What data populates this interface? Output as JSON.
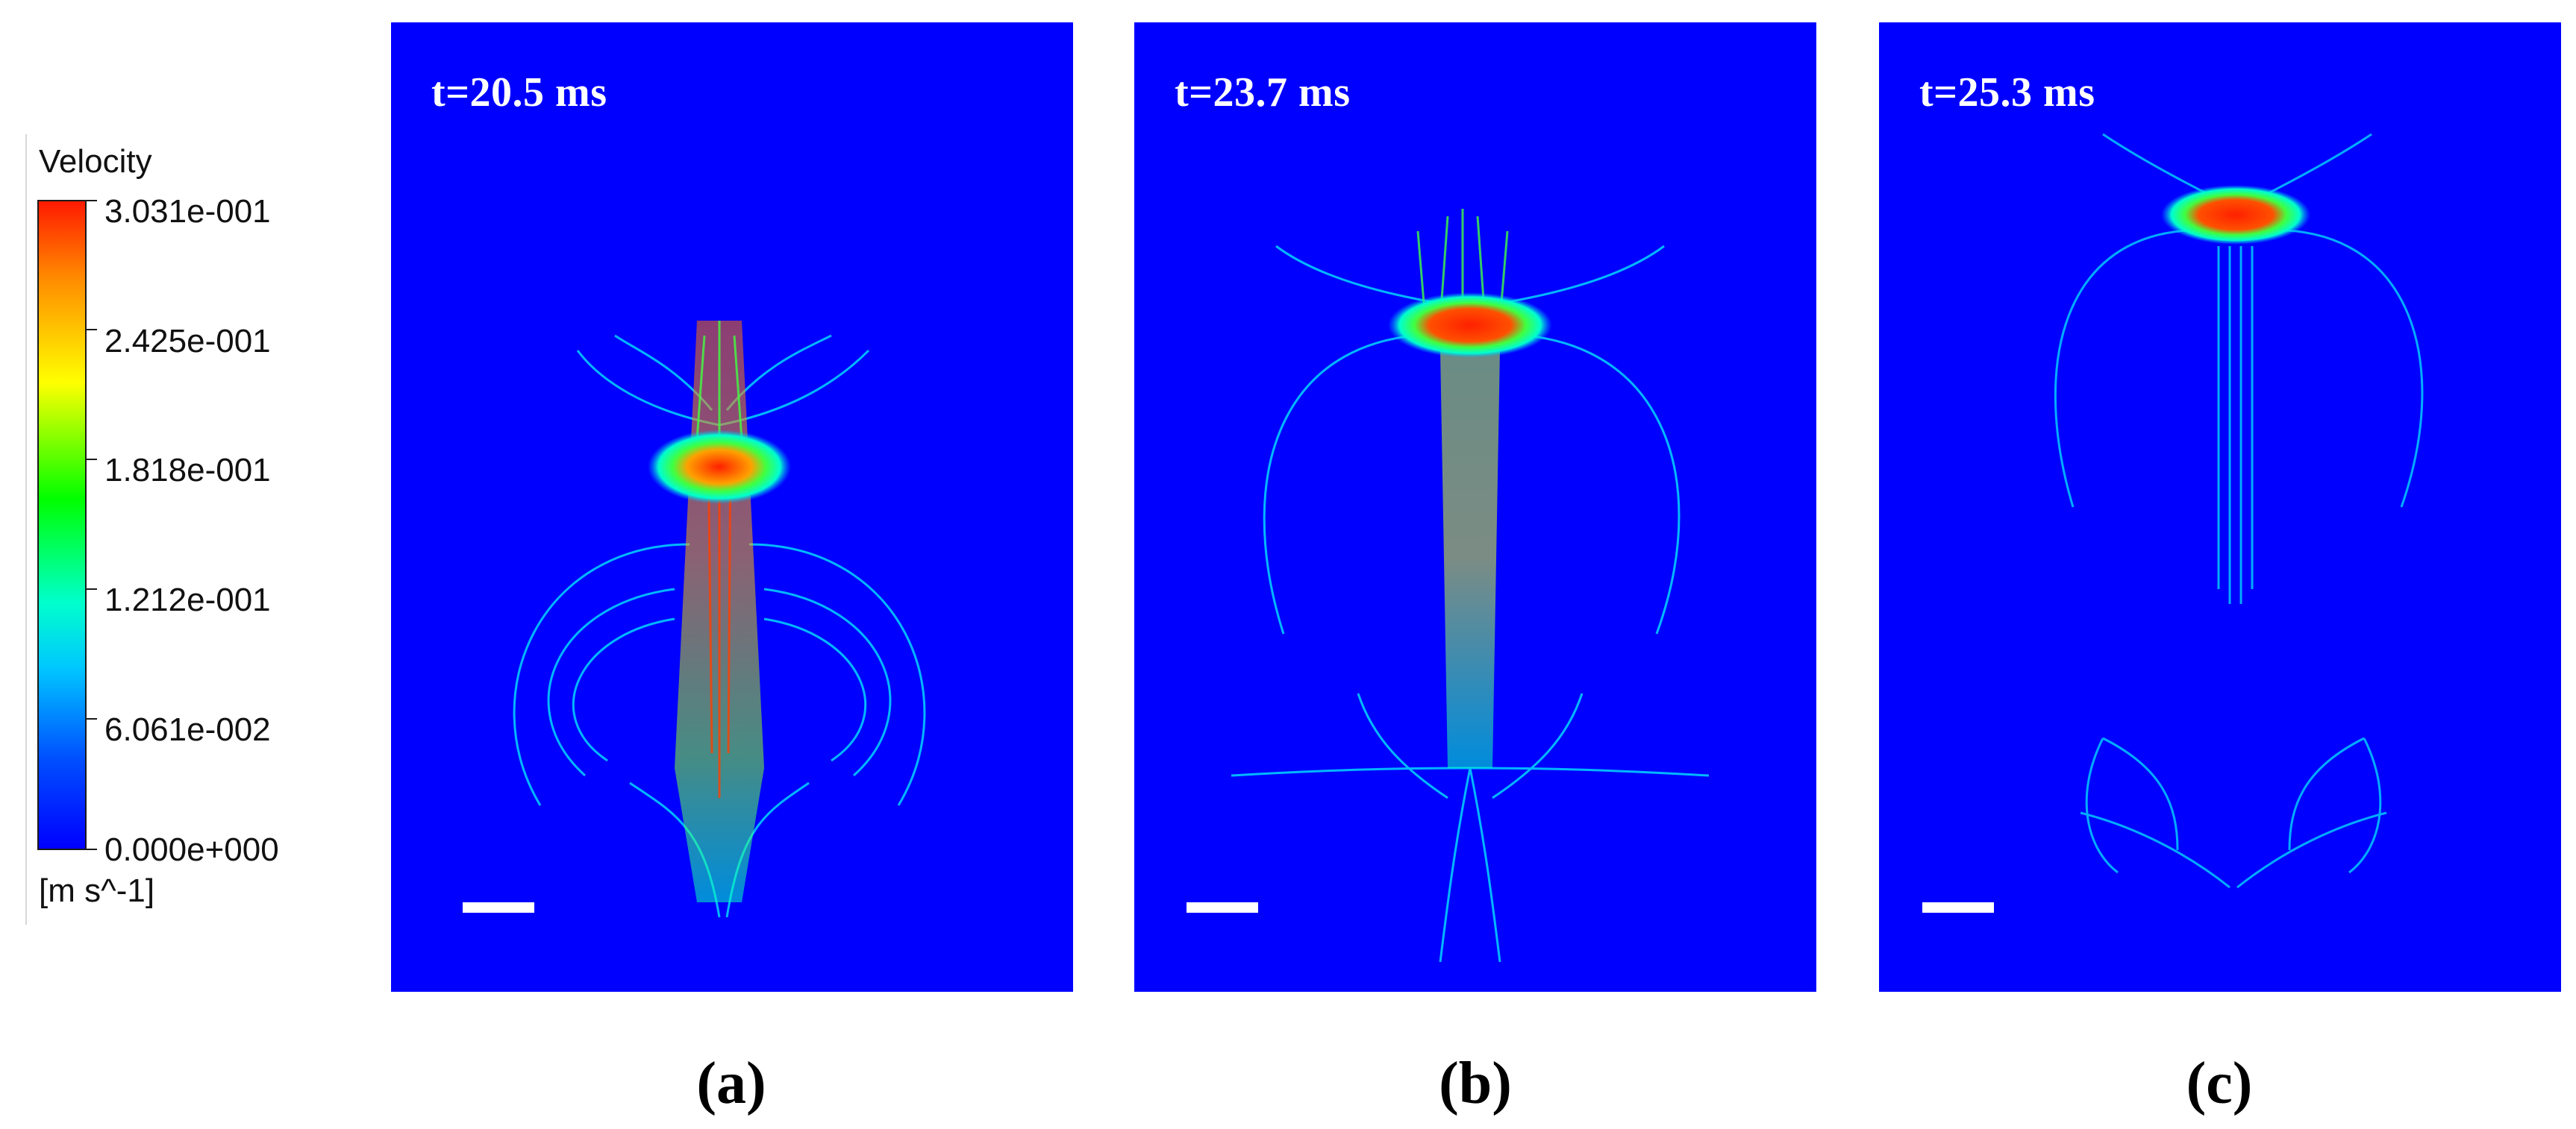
{
  "legend": {
    "title": "Velocity",
    "ticks": [
      "3.031e-001",
      "2.425e-001",
      "1.818e-001",
      "1.212e-001",
      "6.061e-002",
      "0.000e+000"
    ],
    "unit": "[m s^-1]",
    "color_map": [
      "#ff1a00",
      "#ff8c00",
      "#ffff00",
      "#00ff00",
      "#00ffcc",
      "#00c8ff",
      "#0050ff",
      "#0000ff"
    ]
  },
  "panels": [
    {
      "time": "t=20.5 ms",
      "caption": "(a)"
    },
    {
      "time": "t=23.7 ms",
      "caption": "(b)"
    },
    {
      "time": "t=25.3 ms",
      "caption": "(c)"
    }
  ],
  "colors": {
    "background": "#0000ff",
    "text": "#ffffff"
  }
}
